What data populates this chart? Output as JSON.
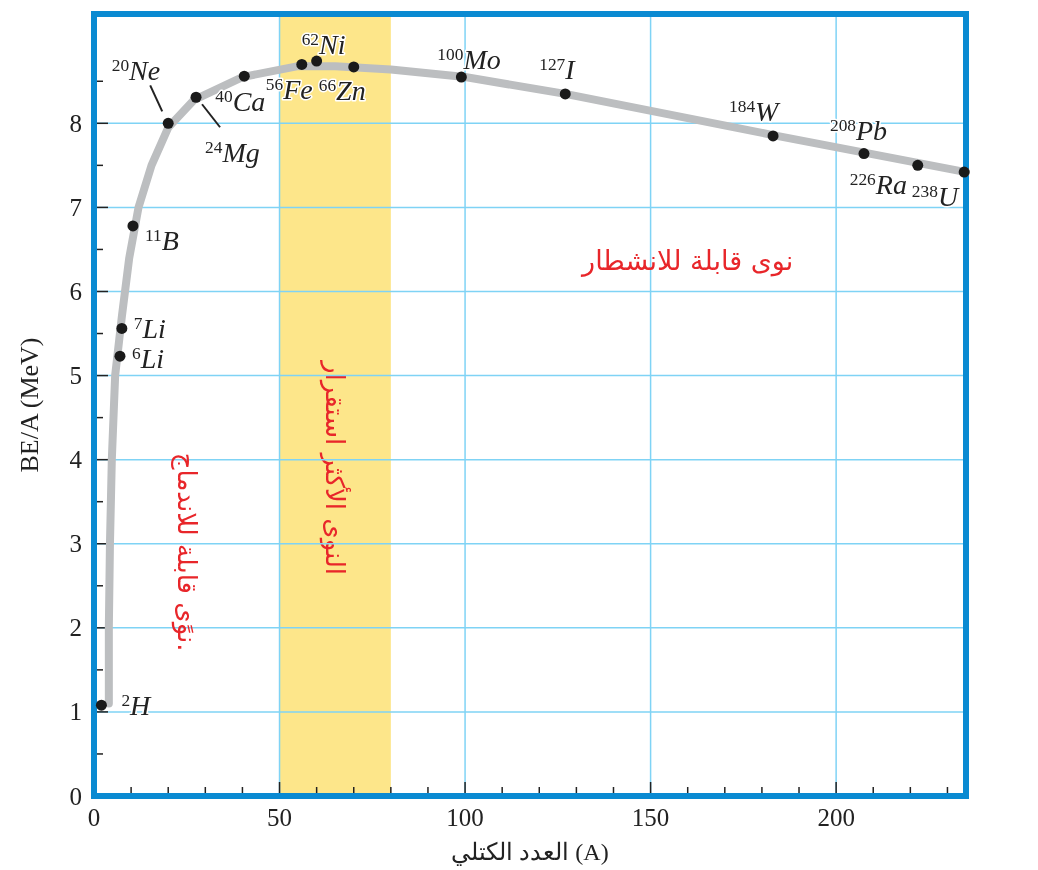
{
  "chart_data": {
    "type": "scatter",
    "xlabel": "العدد الكتلي (A)",
    "ylabel": "BE/A  (MeV)",
    "xlim": [
      0,
      235
    ],
    "ylim": [
      0,
      9.3
    ],
    "xticks": [
      0,
      {
        "value": 10,
        "label": null
      },
      {
        "value": 20,
        "label": null
      },
      {
        "value": 30,
        "label": null
      },
      {
        "value": 40,
        "label": null
      },
      50,
      {
        "value": 60,
        "label": null
      },
      {
        "value": 70,
        "label": null
      },
      {
        "value": 80,
        "label": null
      },
      {
        "value": 90,
        "label": null
      },
      100,
      {
        "value": 110,
        "label": null
      },
      {
        "value": 120,
        "label": null
      },
      {
        "value": 130,
        "label": null
      },
      {
        "value": 140,
        "label": null
      },
      150,
      {
        "value": 160,
        "label": null
      },
      {
        "value": 170,
        "label": null
      },
      {
        "value": 180,
        "label": null
      },
      {
        "value": 190,
        "label": null
      },
      200,
      {
        "value": 210,
        "label": null
      },
      {
        "value": 220,
        "label": null
      },
      {
        "value": 230,
        "label": null
      }
    ],
    "yticks": [
      0,
      {
        "value": 0.5,
        "label": null
      },
      1,
      {
        "value": 1.5,
        "label": null
      },
      2,
      {
        "value": 2.5,
        "label": null
      },
      3,
      {
        "value": 3.5,
        "label": null
      },
      4,
      {
        "value": 4.5,
        "label": null
      },
      5,
      {
        "value": 5.5,
        "label": null
      },
      6,
      {
        "value": 6.5,
        "label": null
      },
      7,
      {
        "value": 7.5,
        "label": null
      },
      8,
      {
        "value": 8.5,
        "label": null
      }
    ],
    "grid": true,
    "series": [
      {
        "type": "line",
        "color": "#bcbec0",
        "marker": "none",
        "x": [
          4,
          4,
          4.3,
          4.8,
          5.7,
          7.5,
          9.5,
          12,
          15.5,
          20,
          27,
          40,
          55,
          65,
          80,
          100,
          127,
          183,
          235
        ],
        "values": [
          1.1,
          2,
          3,
          4,
          5,
          5.7,
          6.4,
          7,
          7.5,
          7.95,
          8.28,
          8.55,
          8.68,
          8.68,
          8.64,
          8.55,
          8.35,
          7.86,
          7.42
        ]
      },
      {
        "color": "#1a1a1a",
        "marker": "circle",
        "x": [
          2,
          7,
          7.5,
          10.5,
          20,
          27.5,
          40.5,
          56,
          60,
          70,
          99,
          127,
          183,
          207.5,
          222,
          234.5
        ],
        "values": [
          1.08,
          5.23,
          5.56,
          6.78,
          8.0,
          8.31,
          8.56,
          8.7,
          8.74,
          8.67,
          8.55,
          8.35,
          7.85,
          7.64,
          7.5,
          7.42
        ]
      }
    ],
    "bands": [
      {
        "axis": "x",
        "from": 50,
        "to": 80,
        "label": "النوى الأكثر استقرار",
        "color": "#fde68a"
      }
    ],
    "annotations": [
      {
        "text": "$^{2}$H",
        "x": 2,
        "y": 1.08
      },
      {
        "text": "$^{6}$Li",
        "x": 7,
        "y": 5.23
      },
      {
        "text": "$^{7}$Li",
        "x": 7.5,
        "y": 5.56
      },
      {
        "text": "$^{11}$B",
        "x": 10.5,
        "y": 6.78
      },
      {
        "text": "$^{20}$Ne",
        "x": 20,
        "y": 8.0
      },
      {
        "text": "$^{24}$Mg",
        "x": 27.5,
        "y": 8.31
      },
      {
        "text": "$^{40}$Ca",
        "x": 40.5,
        "y": 8.56
      },
      {
        "text": "$^{56}$Fe",
        "x": 56,
        "y": 8.7
      },
      {
        "text": "$^{62}$Ni",
        "x": 60,
        "y": 8.74
      },
      {
        "text": "$^{66}$Zn",
        "x": 70,
        "y": 8.67
      },
      {
        "text": "$^{100}$Mo",
        "x": 99,
        "y": 8.55
      },
      {
        "text": "$^{127}$I",
        "x": 127,
        "y": 8.35
      },
      {
        "text": "$^{184}$W",
        "x": 183,
        "y": 7.85
      },
      {
        "text": "$^{208}$Pb",
        "x": 207.5,
        "y": 7.64
      },
      {
        "text": "$^{226}$Ra",
        "x": 222,
        "y": 7.5
      },
      {
        "text": "$^{238}$U",
        "x": 234.5,
        "y": 7.42
      },
      "نوى قابلة للانشطار",
      "نوًى قابلة للاندماج."
    ]
  }
}
